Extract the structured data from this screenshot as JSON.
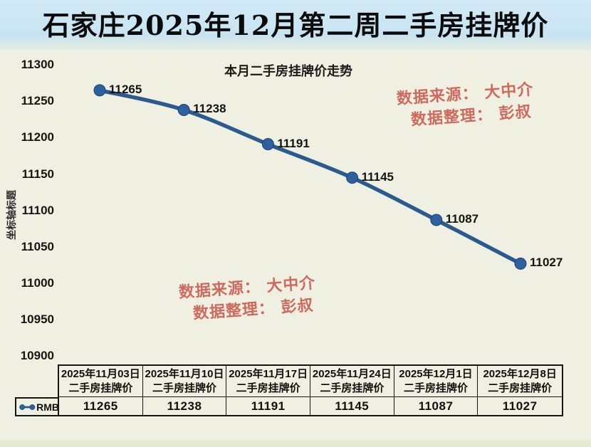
{
  "page": {
    "title": "石家庄2025年12月第二周二手房挂牌价"
  },
  "chart": {
    "title": "本月二手房挂牌价走势",
    "y_axis_title": "坐标轴标题",
    "legend_label": "RMB"
  },
  "watermarks": {
    "source": "数据来源： 大中介",
    "editor": "数据整理： 彭叔"
  },
  "colors": {
    "line": "#2a5a8e",
    "marker": "#2e5f9e",
    "marker_edge": "#1d4470",
    "title_band": "#c7e4f2",
    "watermark": "#cc5e52",
    "background": "#eff0e1"
  },
  "chart_data": {
    "type": "line",
    "title": "本月二手房挂牌价走势",
    "xlabel": "",
    "ylabel": "坐标轴标题",
    "legend": [
      "RMB"
    ],
    "legend_position": "bottom-left-table",
    "grid": false,
    "smooth": true,
    "data_labels": true,
    "categories": [
      "2025年11月03日",
      "2025年11月10日",
      "2025年11月17日",
      "2025年11月24日",
      "2025年12月1日",
      "2025年12月8日"
    ],
    "series": [
      {
        "name": "二手房挂牌价",
        "values": [
          11265,
          11238,
          11191,
          11145,
          11087,
          11027
        ]
      }
    ],
    "ylim": [
      10900,
      11300
    ],
    "ytick_step": 50
  },
  "table": {
    "legend_label": "RMB",
    "columns": [
      {
        "header_line1": "2025年11月03日",
        "header_line2": "二手房挂牌价",
        "value": "11265"
      },
      {
        "header_line1": "2025年11月10日",
        "header_line2": "二手房挂牌价",
        "value": "11238"
      },
      {
        "header_line1": "2025年11月17日",
        "header_line2": "二手房挂牌价",
        "value": "11191"
      },
      {
        "header_line1": "2025年11月24日",
        "header_line2": "二手房挂牌价",
        "value": "11145"
      },
      {
        "header_line1": "2025年12月1日",
        "header_line2": "二手房挂牌价",
        "value": "11087"
      },
      {
        "header_line1": "2025年12月8日",
        "header_line2": "二手房挂牌价",
        "value": "11027"
      }
    ]
  }
}
